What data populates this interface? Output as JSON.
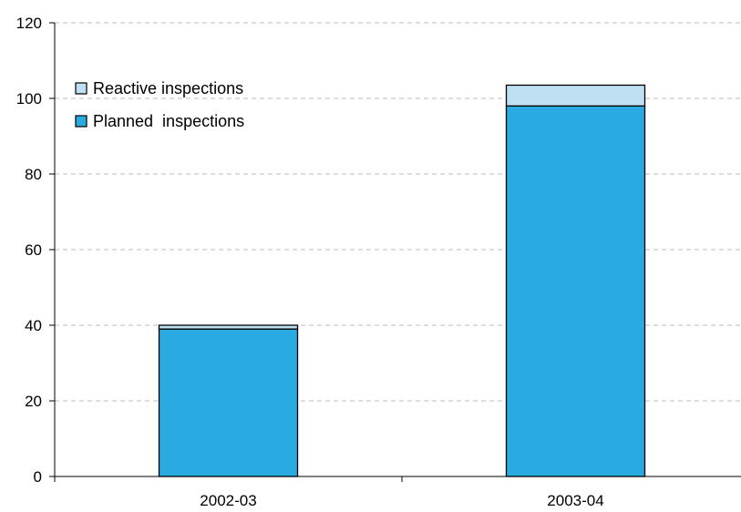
{
  "chart_data": {
    "type": "bar",
    "stacked": true,
    "title": "",
    "xlabel": "",
    "ylabel": "",
    "categories": [
      "2002-03",
      "2003-04"
    ],
    "series": [
      {
        "name": "Planned  inspections",
        "values": [
          39,
          98
        ],
        "color": "#29aae1"
      },
      {
        "name": "Reactive inspections",
        "values": [
          1,
          5.5
        ],
        "color": "#bfe0f2"
      }
    ],
    "ylim": [
      0,
      120
    ],
    "yticks": [
      0,
      20,
      40,
      60,
      80,
      100,
      120
    ],
    "grid": true,
    "legend": {
      "position": "top-left",
      "order": [
        "Reactive inspections",
        "Planned  inspections"
      ]
    }
  }
}
